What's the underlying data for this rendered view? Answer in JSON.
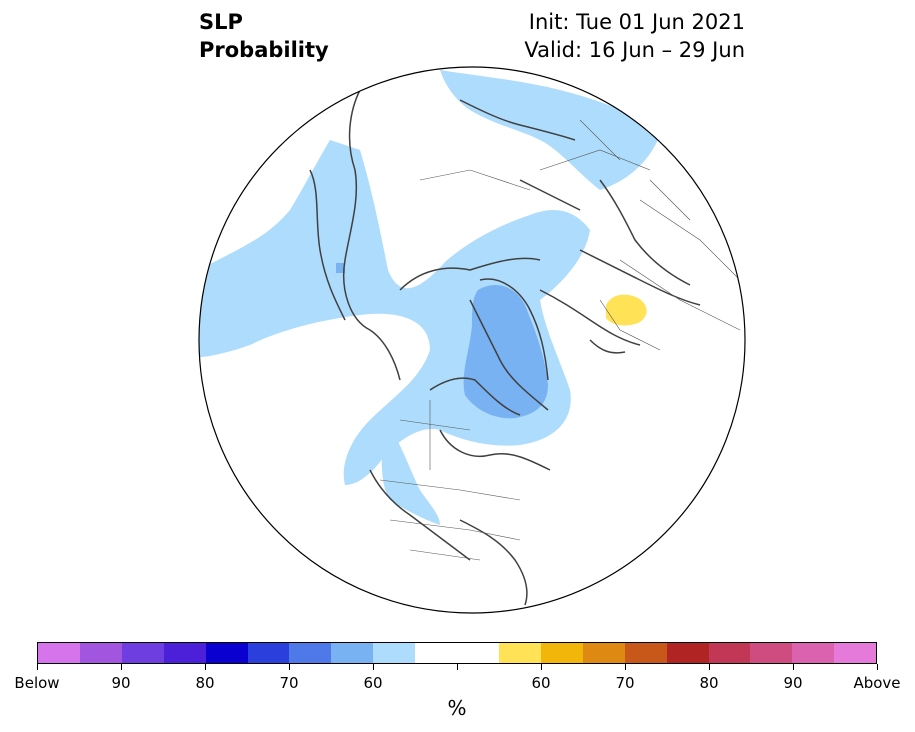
{
  "title": {
    "left_line1": "SLP",
    "left_line2": "Probability",
    "right_line1": "Init: Tue 01 Jun 2021",
    "right_line2": "Valid: 16 Jun – 29 Jun"
  },
  "colorbar": {
    "colors": [
      "#d674ec",
      "#a256e0",
      "#6f3ee0",
      "#4c1fd8",
      "#0a00d0",
      "#2a3fdc",
      "#4f78e8",
      "#78b2f2",
      "#aedcfc",
      "#ffffff",
      "#ffffff",
      "#ffe256",
      "#f2b60a",
      "#de8a12",
      "#c8581a",
      "#b02424",
      "#c23656",
      "#cf4c80",
      "#da62ae",
      "#e67ada"
    ],
    "tick_labels": [
      "Below",
      "90",
      "80",
      "70",
      "60",
      "",
      "60",
      "70",
      "80",
      "90",
      "Above"
    ],
    "unit": "%"
  },
  "map": {
    "projection": "north-polar-stereographic",
    "anomaly_colors": {
      "below_light": "#aedcfc",
      "below_medium": "#78b2f2",
      "above_light": "#ffe256"
    }
  }
}
